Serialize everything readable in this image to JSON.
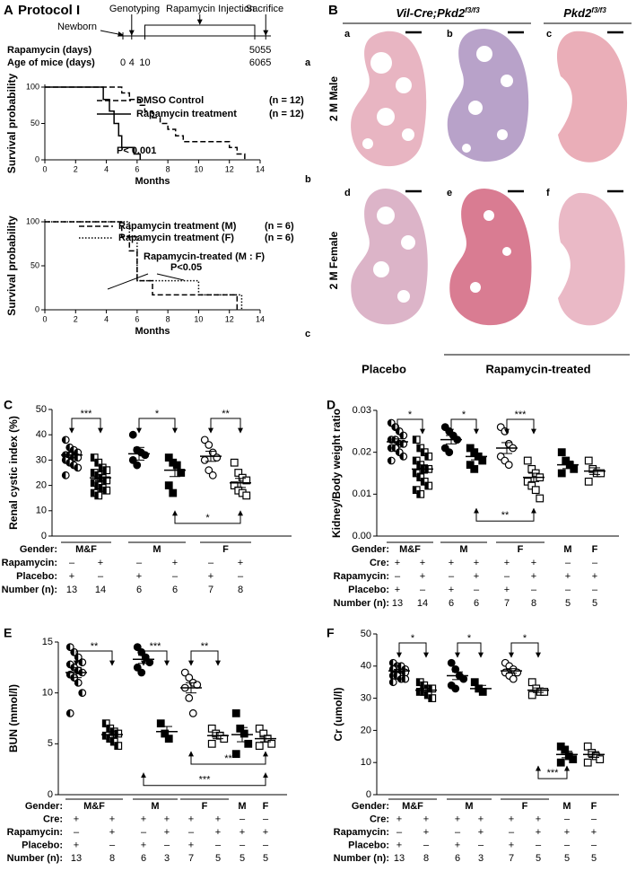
{
  "protocol": {
    "panel": "A",
    "title": "Protocol I",
    "events": [
      "Newborn",
      "Genotyping",
      "Rapamycin Injection",
      "Sacrifice"
    ],
    "rows": [
      {
        "label": "Rapamycin  (days)",
        "values": [
          50,
          55
        ]
      },
      {
        "label": "Age of mice  (days)",
        "values": [
          0,
          4,
          10,
          60,
          65
        ]
      }
    ],
    "tag": "a"
  },
  "histology": {
    "panel": "B",
    "left_header": {
      "main": "Vil-Cre;Pkd2",
      "sup": "f3/f3"
    },
    "right_header": {
      "main": "Pkd2",
      "sup": "f3/f3"
    },
    "rows": [
      "2 M Male",
      "2 M Female"
    ],
    "panels": [
      "a",
      "b",
      "c",
      "d",
      "e",
      "f"
    ],
    "footer": [
      "Placebo",
      "Rapamycin-treated"
    ]
  },
  "chart_data": [
    {
      "type": "line",
      "tag": "b",
      "ylabel": "Survival probability",
      "xlabel": "Months",
      "xlim": [
        0,
        14
      ],
      "xticks": [
        0,
        2,
        4,
        6,
        8,
        10,
        12,
        14
      ],
      "ylim": [
        0,
        100
      ],
      "yticks": [
        0,
        50,
        100
      ],
      "annotations": [
        "P< 0.001"
      ],
      "series": [
        {
          "name": "DMSO Control",
          "n_label": "(n = 12)",
          "dash": "dashed",
          "color": "#000",
          "x": [
            0,
            5,
            5,
            5.5,
            5.5,
            6.2,
            6.2,
            6.5,
            6.5,
            7,
            7,
            7.5,
            7.5,
            8,
            8,
            8.5,
            8.5,
            9,
            9,
            12,
            12,
            12.5,
            12.5,
            13,
            13
          ],
          "values": [
            100,
            100,
            92,
            92,
            83,
            83,
            75,
            75,
            67,
            67,
            58,
            58,
            50,
            50,
            42,
            42,
            33,
            33,
            25,
            25,
            17,
            17,
            8,
            8,
            0
          ]
        },
        {
          "name": "Rapamycin treatment",
          "n_label": "(n = 12)",
          "dash": "solid",
          "color": "#000",
          "x": [
            0,
            3.8,
            3.8,
            4.2,
            4.2,
            4.5,
            4.5,
            4.8,
            4.8,
            5,
            5,
            5.8,
            5.8,
            6.2,
            6.2
          ],
          "values": [
            100,
            100,
            83,
            83,
            67,
            67,
            50,
            50,
            33,
            33,
            17,
            17,
            8,
            8,
            0
          ]
        }
      ]
    },
    {
      "type": "line",
      "tag": "c",
      "ylabel": "Survival probability",
      "xlabel": "Months",
      "xlim": [
        0,
        14
      ],
      "xticks": [
        0,
        2,
        4,
        6,
        8,
        10,
        12,
        14
      ],
      "ylim": [
        0,
        100
      ],
      "yticks": [
        0,
        50,
        100
      ],
      "annotations": [
        "Rapamycin-treated (M : F)",
        "P<0.05"
      ],
      "series": [
        {
          "name": "Rapamycin treatment (M)",
          "n_label": "(n = 6)",
          "dash": "dashed",
          "color": "#000",
          "x": [
            0,
            5,
            5,
            5.5,
            5.5,
            6,
            6,
            7,
            7,
            12.5,
            12.5
          ],
          "values": [
            100,
            100,
            83,
            83,
            67,
            67,
            33,
            33,
            17,
            17,
            0
          ]
        },
        {
          "name": "Rapamycin treatment (F)",
          "n_label": "(n = 6)",
          "dash": "dotted",
          "color": "#000",
          "x": [
            0,
            5.5,
            5.5,
            6,
            6,
            10,
            10,
            12.8,
            12.8
          ],
          "values": [
            100,
            100,
            83,
            83,
            33,
            33,
            17,
            17,
            0
          ]
        }
      ]
    },
    {
      "type": "dotplot",
      "panel": "C",
      "ylabel": "Renal cystic index (%)",
      "ylim": [
        0,
        50
      ],
      "yticks": [
        0,
        10,
        20,
        30,
        40,
        50
      ],
      "groups": [
        {
          "marker": "half-circle",
          "values": [
            38,
            35,
            34,
            33,
            32,
            32,
            31,
            31,
            30,
            29,
            28,
            27,
            24
          ],
          "mean": 32,
          "sem": 1
        },
        {
          "marker": "half-square",
          "values": [
            31,
            29,
            27,
            26,
            25,
            24,
            23,
            22,
            21,
            20,
            19,
            18,
            17,
            16
          ],
          "mean": 23,
          "sem": 1.2
        },
        {
          "marker": "circle",
          "values": [
            40,
            34,
            33,
            32,
            30,
            28
          ],
          "mean": 32.5,
          "sem": 2.5
        },
        {
          "marker": "square",
          "values": [
            31,
            29,
            28,
            25,
            20,
            17
          ],
          "mean": 26,
          "sem": 2.5
        },
        {
          "marker": "open-circle",
          "values": [
            38,
            36,
            33,
            31,
            30,
            26,
            24
          ],
          "mean": 31.5,
          "sem": 2
        },
        {
          "marker": "open-square",
          "values": [
            29,
            25,
            23,
            22,
            20,
            18,
            17,
            16
          ],
          "mean": 21,
          "sem": 1.8
        }
      ],
      "sig_top": [
        "***",
        "*",
        "**"
      ],
      "sig_bottom": [
        "*"
      ],
      "rows": [
        {
          "label": "Gender:",
          "cells": [
            "M&F",
            null,
            "M",
            null,
            "F",
            null
          ]
        },
        {
          "label": "Rapamycin:",
          "cells": [
            "–",
            "+",
            "–",
            "+",
            "–",
            "+"
          ]
        },
        {
          "label": "Placebo:",
          "cells": [
            "+",
            "–",
            "+",
            "–",
            "+",
            "–"
          ]
        },
        {
          "label": "Number (n):",
          "cells": [
            13,
            14,
            6,
            6,
            7,
            8
          ]
        }
      ]
    },
    {
      "type": "dotplot",
      "panel": "D",
      "ylabel": "Kidney/Body weight ratio",
      "ylim": [
        0,
        0.03
      ],
      "yticks": [
        {
          "value": 0,
          "label": "0.00"
        },
        0.01,
        0.02,
        0.03
      ],
      "groups": [
        {
          "marker": "half-circle",
          "values": [
            0.027,
            0.026,
            0.025,
            0.024,
            0.023,
            0.023,
            0.022,
            0.022,
            0.021,
            0.021,
            0.02,
            0.019,
            0.018
          ],
          "mean": 0.0225,
          "sem": 0.0007
        },
        {
          "marker": "half-square",
          "values": [
            0.023,
            0.021,
            0.02,
            0.019,
            0.018,
            0.017,
            0.016,
            0.016,
            0.015,
            0.014,
            0.013,
            0.012,
            0.011,
            0.01
          ],
          "mean": 0.016,
          "sem": 0.001
        },
        {
          "marker": "circle",
          "values": [
            0.026,
            0.025,
            0.024,
            0.023,
            0.021,
            0.02
          ],
          "mean": 0.023,
          "sem": 0.001
        },
        {
          "marker": "square",
          "values": [
            0.021,
            0.02,
            0.019,
            0.018,
            0.017,
            0.016
          ],
          "mean": 0.019,
          "sem": 0.0008
        },
        {
          "marker": "open-circle",
          "values": [
            0.026,
            0.025,
            0.022,
            0.021,
            0.019,
            0.018,
            0.017
          ],
          "mean": 0.021,
          "sem": 0.0013
        },
        {
          "marker": "open-square",
          "values": [
            0.018,
            0.016,
            0.015,
            0.014,
            0.013,
            0.012,
            0.011,
            0.009
          ],
          "mean": 0.014,
          "sem": 0.001
        },
        {
          "marker": "square",
          "values": [
            0.02,
            0.018,
            0.017,
            0.016,
            0.015
          ],
          "mean": 0.017,
          "sem": 0.0009
        },
        {
          "marker": "open-square",
          "values": [
            0.018,
            0.016,
            0.015,
            0.015,
            0.013
          ],
          "mean": 0.0155,
          "sem": 0.0008
        }
      ],
      "sig_top": [
        "*",
        "*",
        "***"
      ],
      "sig_bottom": [
        "**"
      ],
      "rows": [
        {
          "label": "Gender:",
          "cells": [
            "M&F",
            null,
            "M",
            null,
            "F",
            null,
            "M",
            "F"
          ]
        },
        {
          "label": "Cre:",
          "cells": [
            "+",
            "+",
            "+",
            "+",
            "+",
            "+",
            "–",
            "–"
          ]
        },
        {
          "label": "Rapamycin:",
          "cells": [
            "–",
            "+",
            "–",
            "+",
            "–",
            "+",
            "+",
            "+"
          ]
        },
        {
          "label": "Placebo:",
          "cells": [
            "+",
            "–",
            "+",
            "–",
            "+",
            "–",
            "–",
            "–"
          ]
        },
        {
          "label": "Number (n):",
          "cells": [
            13,
            14,
            6,
            6,
            7,
            8,
            5,
            5
          ]
        }
      ]
    },
    {
      "type": "dotplot",
      "panel": "E",
      "ylabel": "BUN (mmol/l)",
      "ylim": [
        0,
        15
      ],
      "yticks": [
        0,
        5,
        10,
        15
      ],
      "groups": [
        {
          "marker": "half-circle",
          "values": [
            14.5,
            14,
            13.5,
            13,
            12.8,
            12.5,
            12.2,
            12,
            11.8,
            11.5,
            11,
            10,
            8
          ],
          "mean": 12,
          "sem": 0.5
        },
        {
          "marker": "half-square",
          "values": [
            7,
            6.5,
            6.2,
            6,
            5.8,
            5.5,
            5.2,
            4.8
          ],
          "mean": 5.9,
          "sem": 0.3
        },
        {
          "marker": "circle",
          "values": [
            14.5,
            14,
            13.5,
            13,
            12.5,
            12
          ],
          "mean": 13.3,
          "sem": 0.4
        },
        {
          "marker": "square",
          "values": [
            7,
            6,
            5.5
          ],
          "mean": 6.2,
          "sem": 0.5
        },
        {
          "marker": "open-circle",
          "values": [
            12,
            11.5,
            11,
            10.8,
            10.5,
            9.5,
            8
          ],
          "mean": 10.5,
          "sem": 0.5
        },
        {
          "marker": "open-square",
          "values": [
            6.5,
            6,
            5.8,
            5.5,
            5
          ],
          "mean": 5.8,
          "sem": 0.3
        },
        {
          "marker": "square",
          "values": [
            8,
            6.5,
            6,
            5,
            4
          ],
          "mean": 5.9,
          "sem": 0.7
        },
        {
          "marker": "open-square",
          "values": [
            6.5,
            6,
            5.5,
            5,
            4.8
          ],
          "mean": 5.5,
          "sem": 0.3
        }
      ],
      "sig_top": [
        "**",
        "***",
        "**"
      ],
      "sig_bottom": [
        "**",
        "***"
      ],
      "rows": [
        {
          "label": "Gender:",
          "cells": [
            "M&F",
            null,
            "M",
            null,
            "F",
            null,
            "M",
            "F"
          ]
        },
        {
          "label": "Cre:",
          "cells": [
            "+",
            "+",
            "+",
            "+",
            "+",
            "+",
            "–",
            "–"
          ]
        },
        {
          "label": "Rapamycin:",
          "cells": [
            "–",
            "+",
            "–",
            "+",
            "–",
            "+",
            "+",
            "+"
          ]
        },
        {
          "label": "Placebo:",
          "cells": [
            "+",
            "–",
            "+",
            "–",
            "+",
            "–",
            "–",
            "–"
          ]
        },
        {
          "label": "Number (n):",
          "cells": [
            13,
            8,
            6,
            3,
            7,
            5,
            5,
            5
          ]
        }
      ]
    },
    {
      "type": "dotplot",
      "panel": "F",
      "ylabel": "Cr (umol/l)",
      "ylim": [
        0,
        50
      ],
      "yticks": [
        0,
        10,
        20,
        30,
        40,
        50
      ],
      "groups": [
        {
          "marker": "half-circle",
          "values": [
            41,
            40,
            40,
            39,
            39,
            38,
            38,
            38,
            37,
            37,
            36,
            36,
            35
          ],
          "mean": 38.5,
          "sem": 0.5
        },
        {
          "marker": "half-square",
          "values": [
            35,
            34,
            33,
            33,
            32,
            32,
            31,
            30
          ],
          "mean": 32.5,
          "sem": 0.6
        },
        {
          "marker": "circle",
          "values": [
            41,
            39,
            37,
            36,
            34,
            33
          ],
          "mean": 37,
          "sem": 1.2
        },
        {
          "marker": "square",
          "values": [
            35,
            33,
            32
          ],
          "mean": 33,
          "sem": 1
        },
        {
          "marker": "open-circle",
          "values": [
            41,
            40,
            39,
            38,
            38,
            37,
            36
          ],
          "mean": 38.5,
          "sem": 0.7
        },
        {
          "marker": "open-square",
          "values": [
            35,
            33,
            32,
            32,
            31
          ],
          "mean": 32.5,
          "sem": 0.7
        },
        {
          "marker": "square",
          "values": [
            15,
            14,
            12,
            11,
            10
          ],
          "mean": 12.5,
          "sem": 1
        },
        {
          "marker": "open-square",
          "values": [
            15,
            13,
            12,
            11,
            10
          ],
          "mean": 12.5,
          "sem": 0.9
        }
      ],
      "sig_top": [
        "*",
        "*",
        "*"
      ],
      "sig_bottom": [
        "***"
      ],
      "rows": [
        {
          "label": "Gender:",
          "cells": [
            "M&F",
            null,
            "M",
            null,
            "F",
            null,
            "M",
            "F"
          ]
        },
        {
          "label": "Cre:",
          "cells": [
            "+",
            "+",
            "+",
            "+",
            "+",
            "+",
            "–",
            "–"
          ]
        },
        {
          "label": "Rapamycin:",
          "cells": [
            "–",
            "+",
            "–",
            "+",
            "–",
            "+",
            "+",
            "+"
          ]
        },
        {
          "label": "Placebo:",
          "cells": [
            "+",
            "–",
            "+",
            "–",
            "+",
            "–",
            "–",
            "–"
          ]
        },
        {
          "label": "Number (n):",
          "cells": [
            13,
            8,
            6,
            3,
            7,
            5,
            5,
            5
          ]
        }
      ]
    }
  ]
}
